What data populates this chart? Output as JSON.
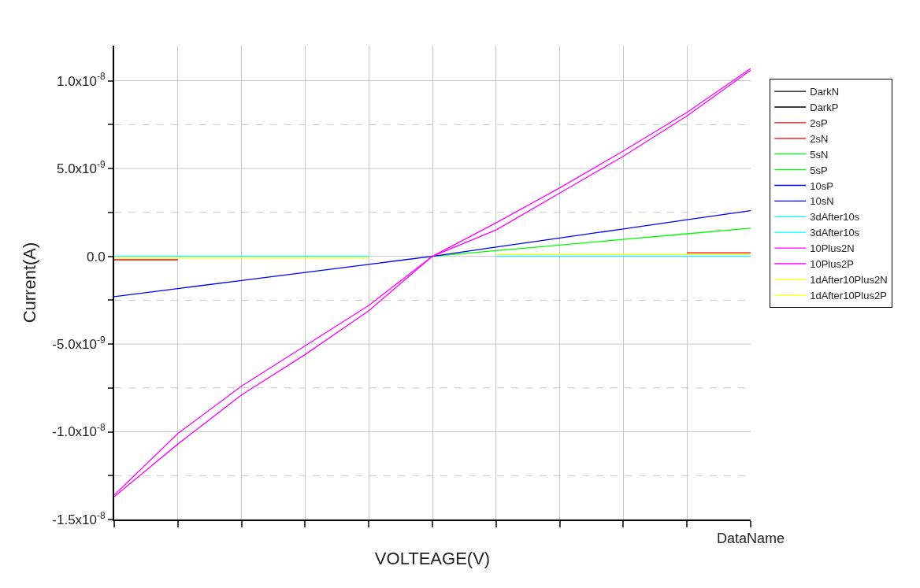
{
  "chart_data": {
    "type": "line",
    "xlabel": "VOLTEAGE(V)",
    "ylabel": "Current(A)",
    "annotations": [
      "DataName"
    ],
    "categories": [
      null,
      null,
      null,
      null,
      null,
      null,
      null,
      null,
      null,
      null,
      null
    ],
    "ylim": [
      -1.5e-08,
      1.2e-08
    ],
    "yticks": [
      {
        "value": -1.5e-08,
        "label": "-1.5x10$^{-8}$"
      },
      {
        "value": -1.25e-08,
        "label": null
      },
      {
        "value": -1e-08,
        "label": "-1.0x10$^{-8}$"
      },
      {
        "value": -7.5e-09,
        "label": null
      },
      {
        "value": -5e-09,
        "label": "-5.0x10$^{-9}$"
      },
      {
        "value": -2.5e-09,
        "label": null
      },
      {
        "value": 0,
        "label": "0.0"
      },
      {
        "value": 2.5e-09,
        "label": null
      },
      {
        "value": 5e-09,
        "label": "5.0x10$^{-9}$"
      },
      {
        "value": 7.5e-09,
        "label": null
      },
      {
        "value": 1e-08,
        "label": "1.0x10$^{-8}$"
      }
    ],
    "grid": true,
    "legend": "right",
    "tick_labels": "y",
    "marker": "none",
    "line_style": "solid",
    "series": [
      {
        "name": "DarkN",
        "color": "#000000",
        "values": [
          null,
          null,
          null,
          null,
          null,
          null,
          null,
          null,
          null,
          null,
          null
        ]
      },
      {
        "name": "DarkP",
        "color": "#000000",
        "values": [
          null,
          null,
          null,
          null,
          null,
          null,
          null,
          null,
          null,
          null,
          null
        ]
      },
      {
        "name": "2sP",
        "color": "#ff0000",
        "values": [
          -2e-10,
          -2e-10,
          null,
          null,
          null,
          null,
          null,
          null,
          null,
          2e-10,
          2e-10
        ]
      },
      {
        "name": "2sN",
        "color": "#ff0000",
        "values": [
          null,
          null,
          null,
          null,
          null,
          null,
          null,
          null,
          null,
          null,
          null
        ]
      },
      {
        "name": "5sN",
        "color": "#00ff00",
        "values": [
          null,
          null,
          null,
          null,
          null,
          0,
          3.2e-10,
          6.4e-10,
          9.6e-10,
          1.28e-09,
          1.6e-09
        ]
      },
      {
        "name": "5sP",
        "color": "#00ff00",
        "values": [
          null,
          null,
          null,
          null,
          null,
          null,
          null,
          null,
          null,
          null,
          null
        ]
      },
      {
        "name": "10sP",
        "color": "#0000ff",
        "values": [
          -2.3e-09,
          -1.84e-09,
          -1.38e-09,
          -9.2e-10,
          -4.6e-10,
          0,
          5.2e-10,
          1.04e-09,
          1.56e-09,
          2.08e-09,
          2.6e-09
        ]
      },
      {
        "name": "10sN",
        "color": "#0000ff",
        "values": [
          null,
          null,
          null,
          null,
          null,
          null,
          null,
          null,
          null,
          null,
          null
        ]
      },
      {
        "name": "3dAfter10s",
        "color": "#00ffff",
        "values": [
          0,
          0,
          0,
          0,
          0,
          null,
          0,
          0,
          0,
          0,
          0
        ]
      },
      {
        "name": "3dAfter10s",
        "color": "#00ffff",
        "values": [
          null,
          null,
          null,
          null,
          null,
          null,
          null,
          null,
          null,
          null,
          null
        ]
      },
      {
        "name": "10Plus2N",
        "color": "#ff00ff",
        "values": [
          -1.36e-08,
          -1.01e-08,
          -7.4e-09,
          -5.1e-09,
          -2.8e-09,
          0,
          1.9e-09,
          3.9e-09,
          6e-09,
          8.2e-09,
          1.07e-08
        ]
      },
      {
        "name": "10Plus2P",
        "color": "#ff00ff",
        "values": [
          -1.37e-08,
          -1.07e-08,
          -7.9e-09,
          -5.6e-09,
          -3.1e-09,
          0,
          1.5e-09,
          3.6e-09,
          5.7e-09,
          8e-09,
          1.06e-08
        ]
      },
      {
        "name": "1dAfter10Plus2N",
        "color": "#ffff00",
        "values": [
          -1e-10,
          -1e-10,
          -1e-10,
          -1e-10,
          -1e-10,
          null,
          1e-10,
          1e-10,
          1e-10,
          1e-10,
          1e-10
        ]
      },
      {
        "name": "1dAfter10Plus2P",
        "color": "#ffff00",
        "values": [
          null,
          null,
          null,
          null,
          null,
          null,
          null,
          null,
          null,
          null,
          null
        ]
      }
    ]
  }
}
